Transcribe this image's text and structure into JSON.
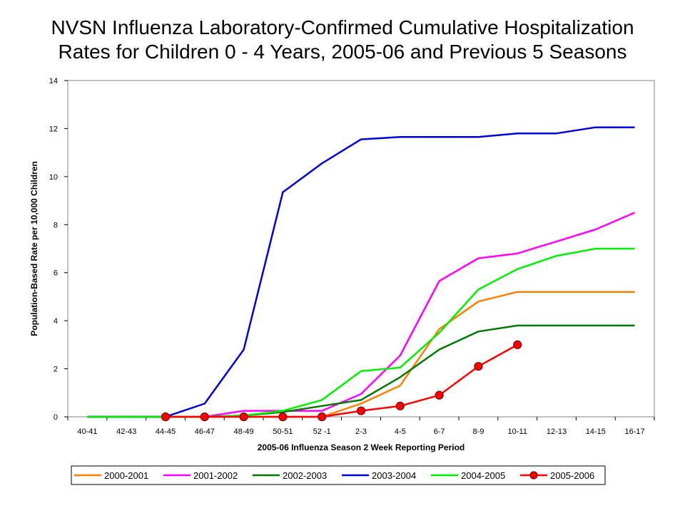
{
  "title_line1": "NVSN Influenza Laboratory-Confirmed Cumulative Hospitalization",
  "title_line2": "Rates for Children 0 - 4 Years, 2005-06 and Previous 5 Seasons",
  "chart_data": {
    "type": "line",
    "title": "NVSN Influenza Laboratory-Confirmed Cumulative Hospitalization Rates for Children 0 - 4 Years, 2005-06 and Previous 5 Seasons",
    "xlabel": "2005-06 Influenza Season 2 Week Reporting Period",
    "ylabel": "Population-Based Rate per 10,000 Children",
    "ylim": [
      0,
      14
    ],
    "yticks": [
      0,
      2,
      4,
      6,
      8,
      10,
      12,
      14
    ],
    "grid": false,
    "legend_position": "bottom",
    "categories": [
      "40-41",
      "42-43",
      "44-45",
      "46-47",
      "48-49",
      "50-51",
      "52 -1",
      "2-3",
      "4-5",
      "6-7",
      "8-9",
      "10-11",
      "12-13",
      "14-15",
      "16-17"
    ],
    "series": [
      {
        "name": "2000-2001",
        "color": "#ff7f00",
        "markers": false,
        "values": [
          0,
          0,
          0,
          0,
          0,
          0,
          0,
          0.55,
          1.3,
          3.65,
          4.8,
          5.2,
          5.2,
          5.2,
          5.2
        ]
      },
      {
        "name": "2001-2002",
        "color": "#ff00ff",
        "markers": false,
        "values": [
          0,
          0,
          0,
          0,
          0.25,
          0.25,
          0.25,
          0.95,
          2.55,
          5.65,
          6.6,
          6.8,
          7.3,
          7.8,
          8.5
        ]
      },
      {
        "name": "2002-2003",
        "color": "#007700",
        "markers": false,
        "values": [
          0,
          0,
          0,
          0,
          0.05,
          0.2,
          0.45,
          0.7,
          1.65,
          2.8,
          3.55,
          3.8,
          3.8,
          3.8,
          3.8
        ]
      },
      {
        "name": "2003-2004",
        "color": "#0000dd",
        "markers": false,
        "values": [
          0,
          0,
          0,
          0.55,
          2.8,
          9.35,
          10.55,
          11.55,
          11.65,
          11.65,
          11.65,
          11.8,
          11.8,
          12.05,
          12.05
        ]
      },
      {
        "name": "2004-2005",
        "color": "#00ee00",
        "markers": false,
        "values": [
          0,
          0,
          0,
          0,
          0.05,
          0.25,
          0.7,
          1.9,
          2.05,
          3.5,
          5.3,
          6.15,
          6.7,
          7.0,
          7.0
        ]
      },
      {
        "name": "2005-2006",
        "color": "#ff0000",
        "markers": true,
        "values": [
          null,
          null,
          0,
          0,
          0,
          0,
          0,
          0.25,
          0.45,
          0.9,
          2.1,
          3.0,
          null,
          null,
          null
        ]
      }
    ]
  }
}
